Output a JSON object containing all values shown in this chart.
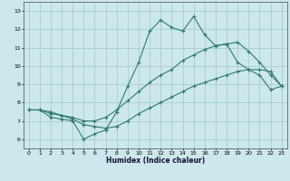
{
  "xlabel": "Humidex (Indice chaleur)",
  "bg_color": "#cce8ec",
  "grid_color": "#aacccc",
  "line_color": "#2d7b6e",
  "xlim": [
    -0.5,
    23.5
  ],
  "ylim": [
    5.5,
    13.5
  ],
  "xticks": [
    0,
    1,
    2,
    3,
    4,
    5,
    6,
    7,
    8,
    9,
    10,
    11,
    12,
    13,
    14,
    15,
    16,
    17,
    18,
    19,
    20,
    21,
    22,
    23
  ],
  "yticks": [
    6,
    7,
    8,
    9,
    10,
    11,
    12,
    13
  ],
  "line1_x": [
    0,
    1,
    2,
    3,
    4,
    5,
    6,
    7,
    8,
    9,
    10,
    11,
    12,
    13,
    14,
    15,
    16,
    17,
    18,
    19,
    20,
    21,
    22,
    23
  ],
  "line1_y": [
    7.6,
    7.6,
    7.2,
    7.1,
    7.0,
    6.0,
    6.3,
    6.5,
    7.5,
    8.9,
    10.2,
    11.9,
    12.5,
    12.1,
    11.9,
    12.7,
    11.7,
    11.1,
    11.2,
    10.2,
    9.8,
    9.5,
    8.7,
    8.9
  ],
  "line2_x": [
    0,
    1,
    2,
    3,
    4,
    5,
    6,
    7,
    8,
    9,
    10,
    11,
    12,
    13,
    14,
    15,
    16,
    17,
    18,
    19,
    20,
    21,
    22,
    23
  ],
  "line2_y": [
    7.6,
    7.6,
    7.4,
    7.3,
    7.2,
    7.0,
    7.0,
    7.2,
    7.6,
    8.1,
    8.6,
    9.1,
    9.5,
    9.8,
    10.3,
    10.6,
    10.9,
    11.1,
    11.2,
    11.3,
    10.8,
    10.2,
    9.5,
    8.9
  ],
  "line3_x": [
    0,
    1,
    2,
    3,
    4,
    5,
    6,
    7,
    8,
    9,
    10,
    11,
    12,
    13,
    14,
    15,
    16,
    17,
    18,
    19,
    20,
    21,
    22,
    23
  ],
  "line3_y": [
    7.6,
    7.6,
    7.5,
    7.3,
    7.1,
    6.8,
    6.7,
    6.6,
    6.7,
    7.0,
    7.4,
    7.7,
    8.0,
    8.3,
    8.6,
    8.9,
    9.1,
    9.3,
    9.5,
    9.7,
    9.8,
    9.8,
    9.7,
    8.9
  ]
}
